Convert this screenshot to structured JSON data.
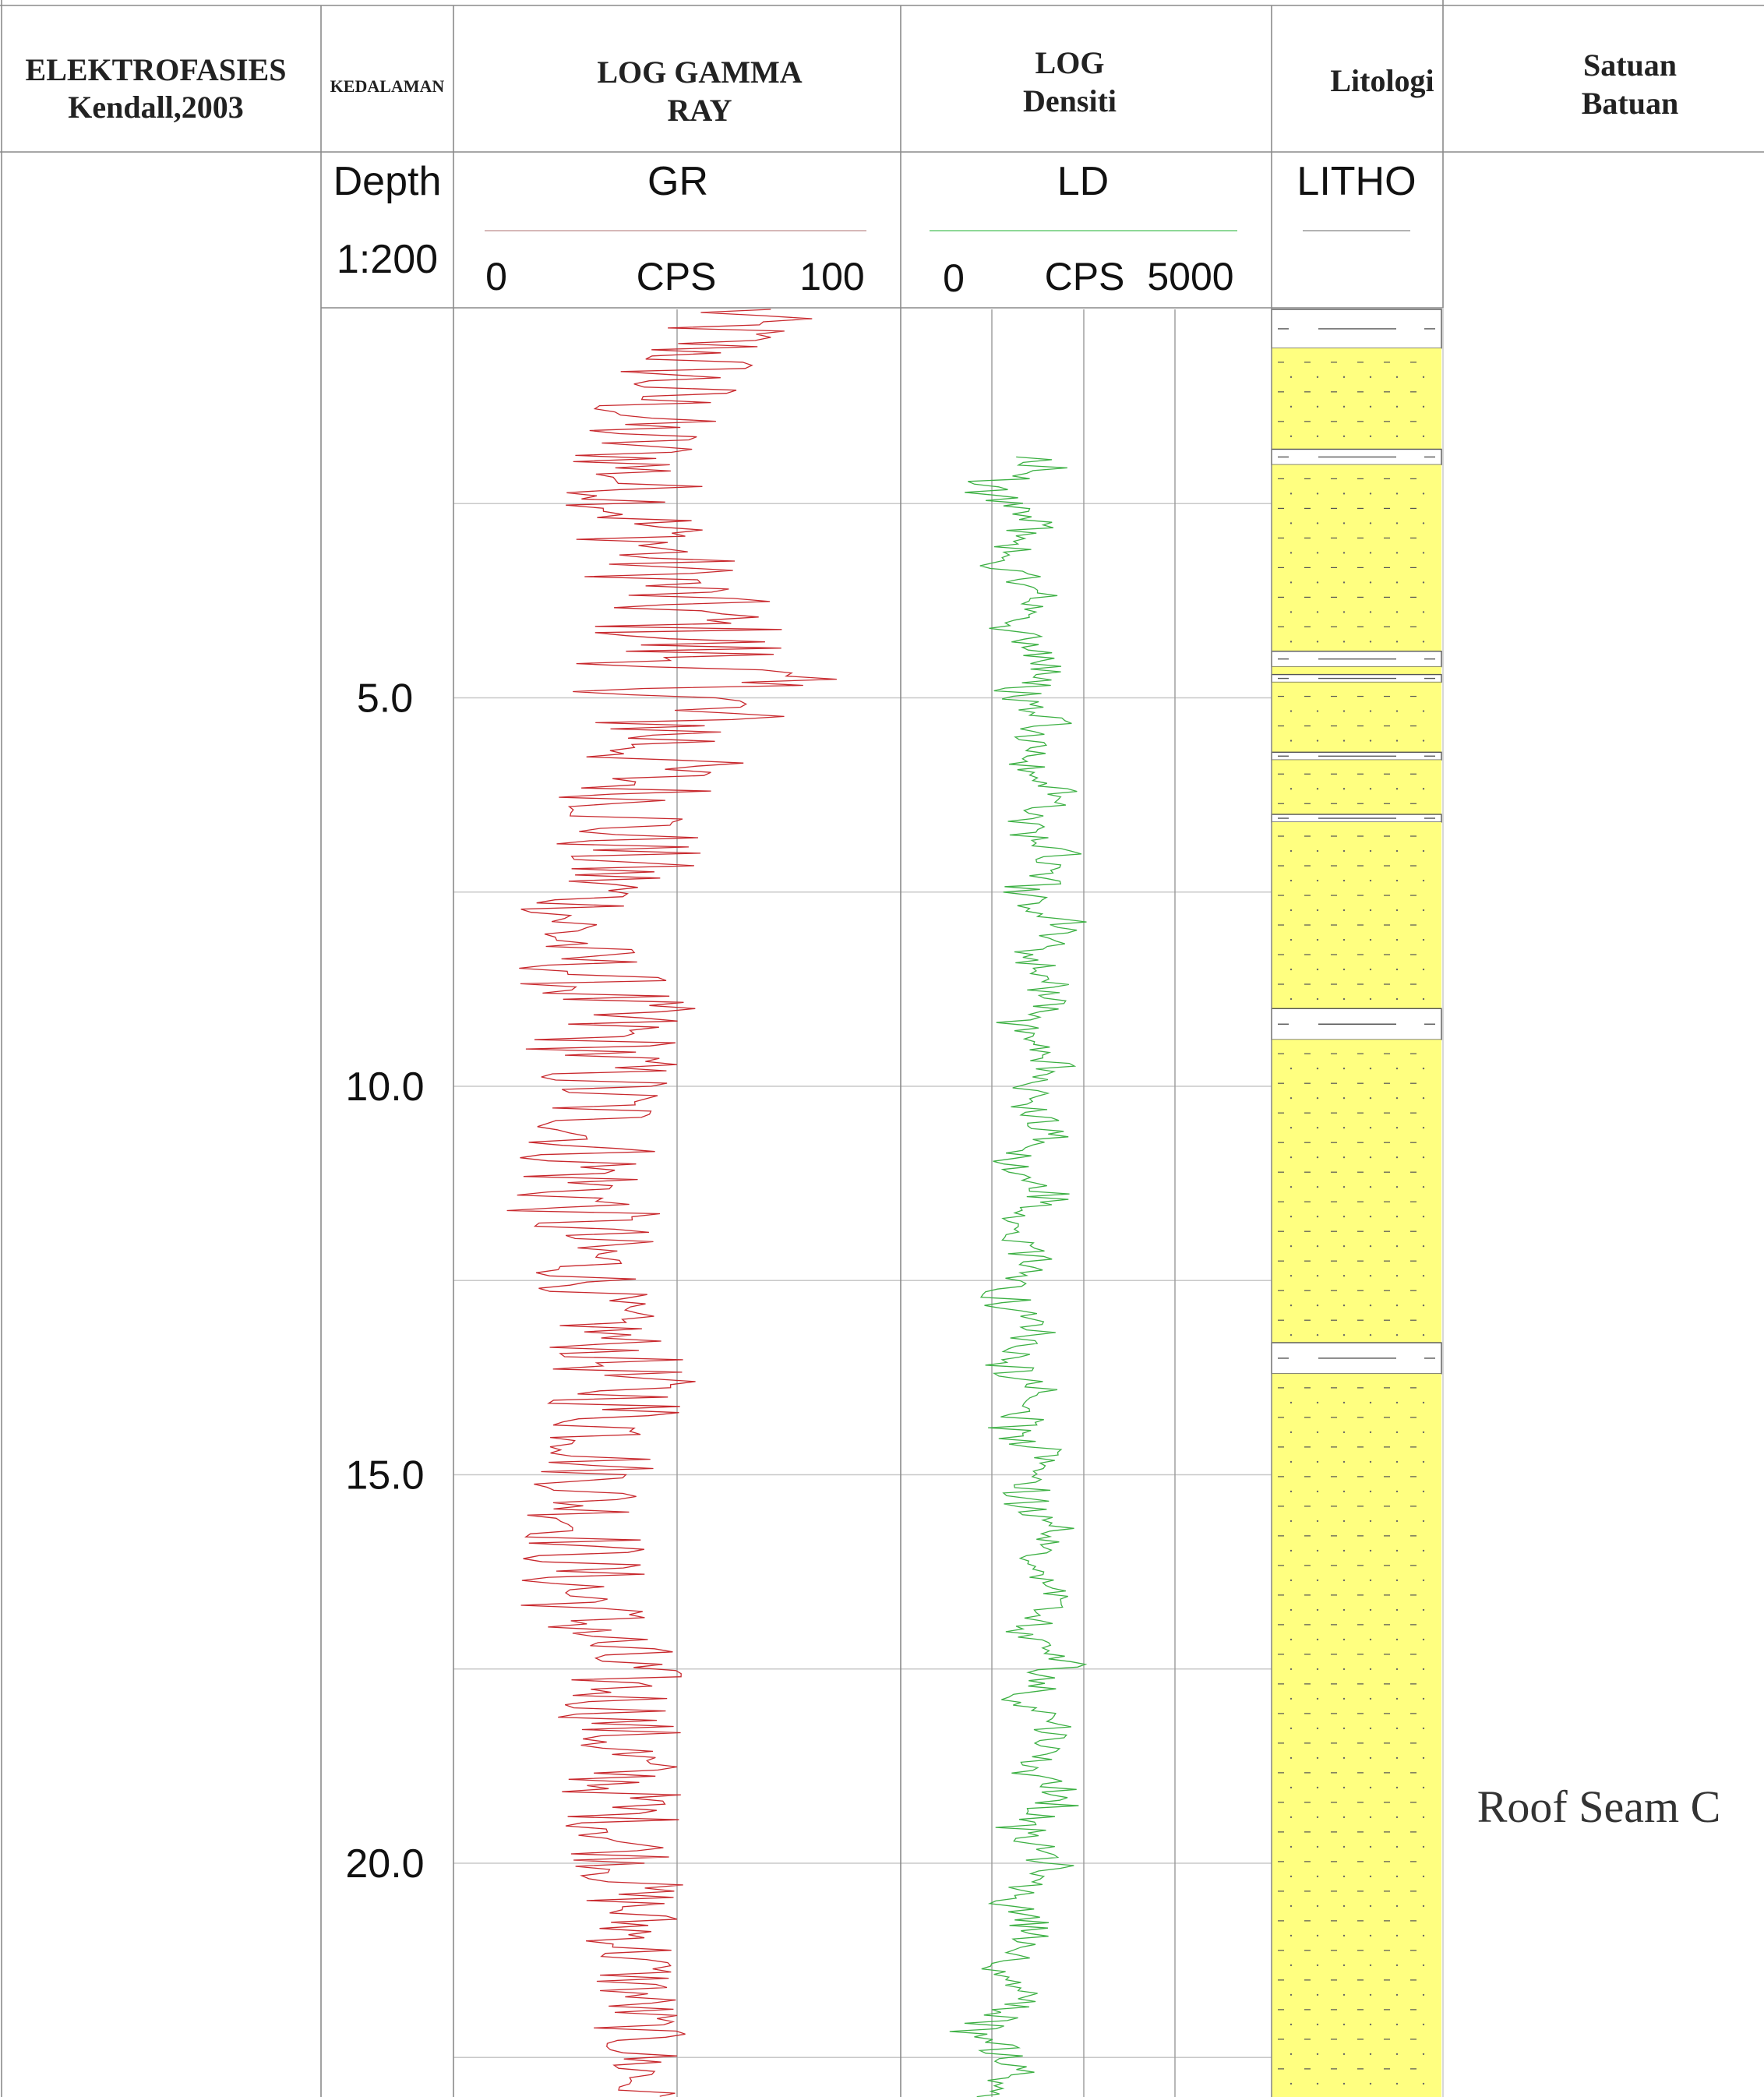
{
  "headers": {
    "elektrofasies": {
      "line1": "ELEKTROFASIES",
      "line2": "Kendall,2003"
    },
    "kedalaman": "KEDALAMAN",
    "log_gamma": {
      "line1": "LOG GAMMA",
      "line2": "RAY"
    },
    "log_densiti": {
      "line1": "LOG",
      "line2": "Densiti"
    },
    "litologi": "Litologi",
    "satuan": {
      "line1": "Satuan",
      "line2": "Batuan"
    }
  },
  "depth_track": {
    "title": "Depth",
    "scale": "1:200"
  },
  "gr_track": {
    "title": "GR",
    "min_label": "0",
    "unit": "CPS",
    "max_label": "100",
    "color": "#c8282d"
  },
  "ld_track": {
    "title": "LD",
    "min_label": "0",
    "unit": "CPS",
    "max_label": "5000",
    "color": "#3cb043"
  },
  "litho_track": {
    "title": "LITHO",
    "fill_color": "#ffff80"
  },
  "satuan_batuan": {
    "label": "Roof Seam C"
  },
  "chart_data": {
    "type": "line",
    "y_axis": "depth",
    "depth_range": [
      0,
      23.1
    ],
    "depth_ticks": [
      5.0,
      10.0,
      15.0,
      20.0
    ],
    "depth_tick_labels": [
      "5.0",
      "10.0",
      "15.0",
      "20.0"
    ],
    "series": [
      {
        "name": "GR",
        "xlim": [
          0,
          100
        ],
        "depth_top": 0.0,
        "depth_bottom": 23.1,
        "envelope": [
          {
            "depth": 0.0,
            "min": 45,
            "max": 88
          },
          {
            "depth": 1.5,
            "min": 18,
            "max": 60
          },
          {
            "depth": 2.5,
            "min": 20,
            "max": 58
          },
          {
            "depth": 3.5,
            "min": 25,
            "max": 70
          },
          {
            "depth": 4.8,
            "min": 22,
            "max": 93
          },
          {
            "depth": 6.0,
            "min": 20,
            "max": 65
          },
          {
            "depth": 7.2,
            "min": 12,
            "max": 55
          },
          {
            "depth": 8.0,
            "min": 5,
            "max": 35
          },
          {
            "depth": 9.0,
            "min": 8,
            "max": 55
          },
          {
            "depth": 10.5,
            "min": 10,
            "max": 48
          },
          {
            "depth": 11.5,
            "min": 2,
            "max": 46
          },
          {
            "depth": 12.8,
            "min": 15,
            "max": 42
          },
          {
            "depth": 14.0,
            "min": 15,
            "max": 58
          },
          {
            "depth": 15.0,
            "min": 12,
            "max": 45
          },
          {
            "depth": 16.5,
            "min": 5,
            "max": 42
          },
          {
            "depth": 17.5,
            "min": 18,
            "max": 52
          },
          {
            "depth": 19.0,
            "min": 18,
            "max": 52
          },
          {
            "depth": 20.5,
            "min": 24,
            "max": 52
          },
          {
            "depth": 22.5,
            "min": 28,
            "max": 52
          },
          {
            "depth": 23.1,
            "min": 30,
            "max": 50
          }
        ]
      },
      {
        "name": "LD",
        "xlim": [
          0,
          5000
        ],
        "depth_top": 1.9,
        "depth_bottom": 23.1,
        "envelope": [
          {
            "depth": 1.9,
            "min": 200,
            "max": 1100
          },
          {
            "depth": 3.0,
            "min": 400,
            "max": 1000
          },
          {
            "depth": 5.0,
            "min": 450,
            "max": 1150
          },
          {
            "depth": 7.0,
            "min": 550,
            "max": 1200
          },
          {
            "depth": 10.0,
            "min": 500,
            "max": 1100
          },
          {
            "depth": 13.0,
            "min": 400,
            "max": 1000
          },
          {
            "depth": 16.0,
            "min": 550,
            "max": 1150
          },
          {
            "depth": 19.0,
            "min": 550,
            "max": 1180
          },
          {
            "depth": 21.0,
            "min": 450,
            "max": 1000
          },
          {
            "depth": 22.3,
            "min": 250,
            "max": 900
          },
          {
            "depth": 23.1,
            "min": 250,
            "max": 1000
          }
        ]
      }
    ],
    "lithology": [
      {
        "type": "shale",
        "top": 0.0,
        "bottom": 0.5
      },
      {
        "type": "sandstone",
        "top": 0.5,
        "bottom": 1.8
      },
      {
        "type": "shale",
        "top": 1.8,
        "bottom": 2.0
      },
      {
        "type": "sandstone",
        "top": 2.0,
        "bottom": 4.4
      },
      {
        "type": "shale",
        "top": 4.4,
        "bottom": 4.6
      },
      {
        "type": "sandstone",
        "top": 4.6,
        "bottom": 4.7
      },
      {
        "type": "shale",
        "top": 4.7,
        "bottom": 4.8
      },
      {
        "type": "sandstone",
        "top": 4.8,
        "bottom": 5.7
      },
      {
        "type": "shale",
        "top": 5.7,
        "bottom": 5.8
      },
      {
        "type": "sandstone",
        "top": 5.8,
        "bottom": 6.5
      },
      {
        "type": "shale",
        "top": 6.5,
        "bottom": 6.6
      },
      {
        "type": "sandstone",
        "top": 6.6,
        "bottom": 9.0
      },
      {
        "type": "shale",
        "top": 9.0,
        "bottom": 9.4
      },
      {
        "type": "sandstone",
        "top": 9.4,
        "bottom": 13.3
      },
      {
        "type": "shale",
        "top": 13.3,
        "bottom": 13.7
      },
      {
        "type": "sandstone",
        "top": 13.7,
        "bottom": 23.1
      }
    ]
  }
}
